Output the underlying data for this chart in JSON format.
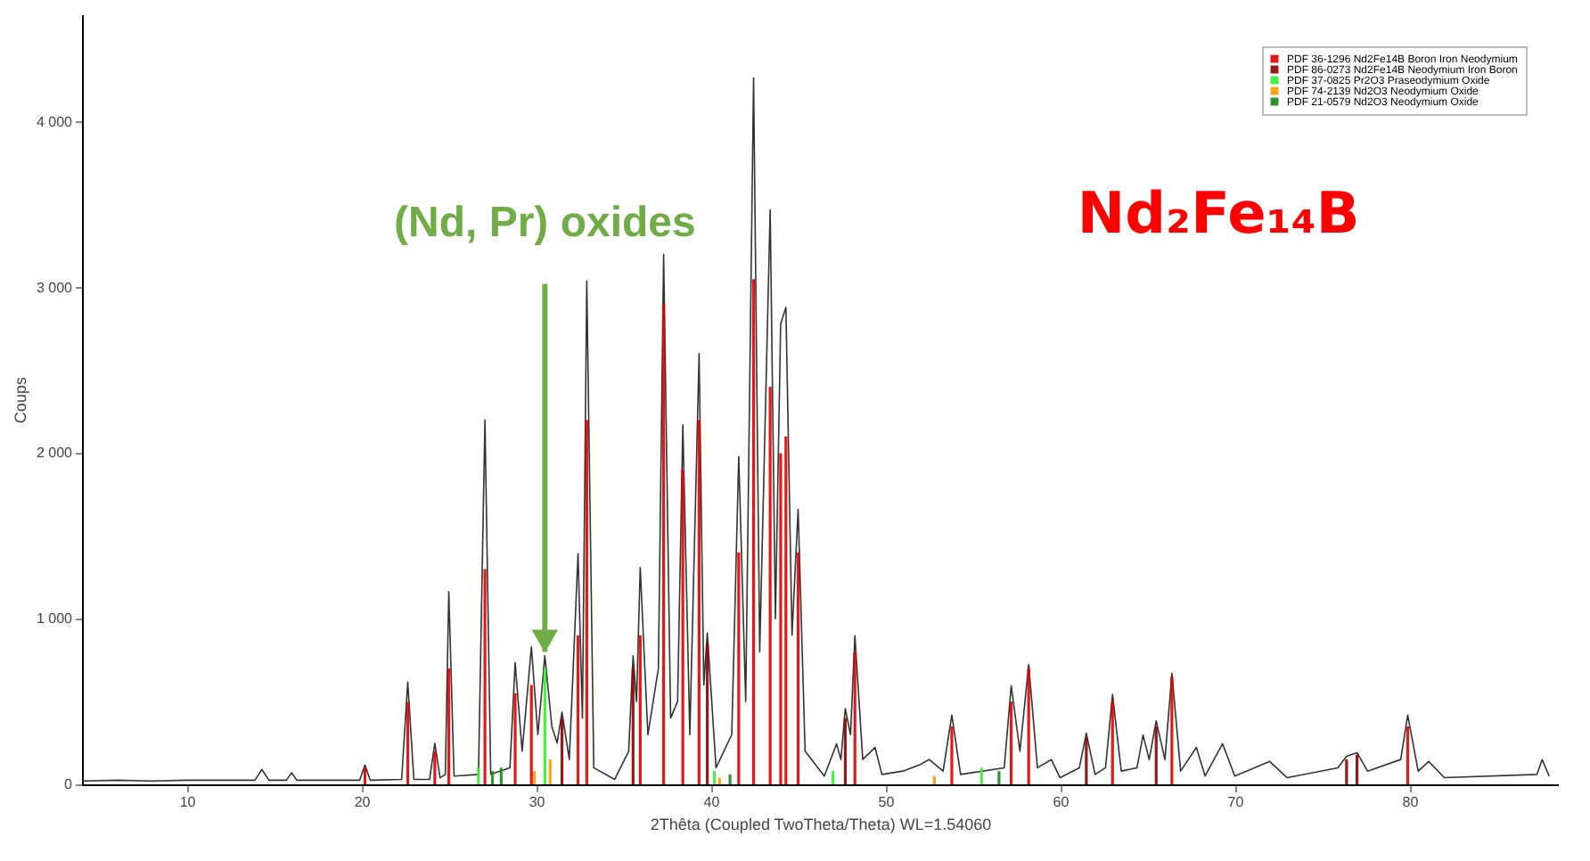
{
  "chart_data": {
    "type": "line",
    "xlabel": "2Thêta (Coupled TwoTheta/Theta) WL=1.54060",
    "ylabel": "Coups",
    "xlim": [
      4,
      88.5
    ],
    "ylim": [
      0,
      4650
    ],
    "xticks": [
      10,
      20,
      30,
      40,
      50,
      60,
      70,
      80
    ],
    "yticks": [
      0,
      {
        "value": 1000,
        "label": "1 000"
      },
      {
        "value": 2000,
        "label": "2 000"
      },
      {
        "value": 3000,
        "label": "3 000"
      },
      {
        "value": 4000,
        "label": "4 000"
      }
    ],
    "grid": false,
    "legend": "top right",
    "marker": "none",
    "line_style": "solid",
    "annotations": [
      {
        "text": "(Nd, Pr) oxides",
        "x": 30.5,
        "y": 800
      },
      "Nd₂Fe₁₄B"
    ],
    "series": [
      {
        "color": "#333333",
        "x": [
          4,
          6,
          8,
          10,
          12,
          13.9,
          14.3,
          14.7,
          15.7,
          16.0,
          16.3,
          19.9,
          20.2,
          20.5,
          22.3,
          22.65,
          23.0,
          23.9,
          24.2,
          24.5,
          24.8,
          25.0,
          25.3,
          26.7,
          27.07,
          27.4,
          28.5,
          28.8,
          29.2,
          29.73,
          30.1,
          30.5,
          30.9,
          31.2,
          31.48,
          31.9,
          32.4,
          32.65,
          32.9,
          33.3,
          34.5,
          35.3,
          35.55,
          35.75,
          35.96,
          36.4,
          37.0,
          37.3,
          37.7,
          38.1,
          38.4,
          38.8,
          39.33,
          39.6,
          39.8,
          40.3,
          41.2,
          41.6,
          42.0,
          42.45,
          42.8,
          43.4,
          43.7,
          44.0,
          44.3,
          44.65,
          45.0,
          45.4,
          46.5,
          47.2,
          47.45,
          47.7,
          48.0,
          48.25,
          48.7,
          49.4,
          49.8,
          51.0,
          52.0,
          52.5,
          53.3,
          53.8,
          54.3,
          56.8,
          57.2,
          57.7,
          58.2,
          58.7,
          59.5,
          60.0,
          61.1,
          61.5,
          62.0,
          62.6,
          63.0,
          63.5,
          64.4,
          64.75,
          65.1,
          65.5,
          66.0,
          66.4,
          66.9,
          67.8,
          68.3,
          69.3,
          70.0,
          72.0,
          73.0,
          75.9,
          76.4,
          77.0,
          77.6,
          79.5,
          79.9,
          80.5,
          81.1,
          82.0,
          87.3,
          87.6,
          88.0
        ],
        "values": [
          20,
          25,
          20,
          25,
          25,
          25,
          90,
          25,
          25,
          70,
          25,
          25,
          117,
          25,
          30,
          617,
          30,
          30,
          248,
          40,
          60,
          1163,
          50,
          60,
          2200,
          60,
          100,
          734,
          200,
          830,
          300,
          776,
          350,
          250,
          436,
          150,
          1394,
          400,
          3040,
          100,
          30,
          200,
          776,
          500,
          1309,
          300,
          700,
          3200,
          400,
          500,
          2170,
          300,
          2600,
          600,
          915,
          100,
          300,
          1979,
          500,
          4265,
          800,
          3470,
          1000,
          2780,
          2880,
          900,
          1660,
          200,
          50,
          245,
          150,
          457,
          300,
          897,
          150,
          223,
          60,
          80,
          120,
          150,
          80,
          418,
          60,
          100,
          596,
          200,
          723,
          100,
          149,
          40,
          100,
          309,
          60,
          100,
          543,
          80,
          100,
          298,
          150,
          383,
          150,
          670,
          80,
          223,
          50,
          245,
          50,
          138,
          40,
          100,
          170,
          191,
          80,
          150,
          418,
          80,
          138,
          40,
          60,
          149,
          50
        ]
      },
      {
        "type": "bar",
        "name": "PDF 36-1296 Nd2Fe14B Boron Iron Neodymium",
        "color": "#e00000",
        "x": [
          20.2,
          22.65,
          24.2,
          25.0,
          27.07,
          28.8,
          29.73,
          32.4,
          32.9,
          35.96,
          37.3,
          38.4,
          39.33,
          41.6,
          42.45,
          43.4,
          44.0,
          44.3,
          45.0,
          48.25,
          53.8,
          57.2,
          58.2,
          63.0,
          66.4,
          79.9
        ],
        "values": [
          100,
          500,
          200,
          700,
          1300,
          550,
          600,
          900,
          2200,
          900,
          2900,
          1900,
          2200,
          1400,
          3050,
          2400,
          2000,
          2100,
          1400,
          800,
          350,
          500,
          700,
          500,
          650,
          350
        ]
      },
      {
        "type": "bar",
        "name": "PDF 86-0273 Nd2Fe14B Neodymium Iron Boron",
        "color": "#8b0000",
        "x": [
          31.48,
          35.55,
          39.8,
          47.7,
          61.5,
          65.5,
          76.4,
          77.0
        ],
        "values": [
          400,
          700,
          850,
          400,
          280,
          350,
          150,
          180
        ]
      },
      {
        "type": "bar",
        "name": "PDF 37-0825 Pr2O3 Praseodymium Oxide",
        "color": "#33ee33",
        "x": [
          26.7,
          30.5,
          40.2,
          47.0,
          55.5
        ],
        "values": [
          100,
          700,
          80,
          80,
          100
        ]
      },
      {
        "type": "bar",
        "name": "PDF 74-2139 Nd2O3 Neodymium Oxide",
        "color": "#ff9900",
        "x": [
          29.9,
          30.8,
          40.5,
          52.8
        ],
        "values": [
          80,
          150,
          40,
          50
        ]
      },
      {
        "type": "bar",
        "name": "PDF 21-0579 Nd2O3 Neodymium Oxide",
        "color": "#1a8a1a",
        "x": [
          27.5,
          28.0,
          41.1,
          56.5
        ],
        "values": [
          80,
          100,
          60,
          80
        ]
      }
    ]
  }
}
